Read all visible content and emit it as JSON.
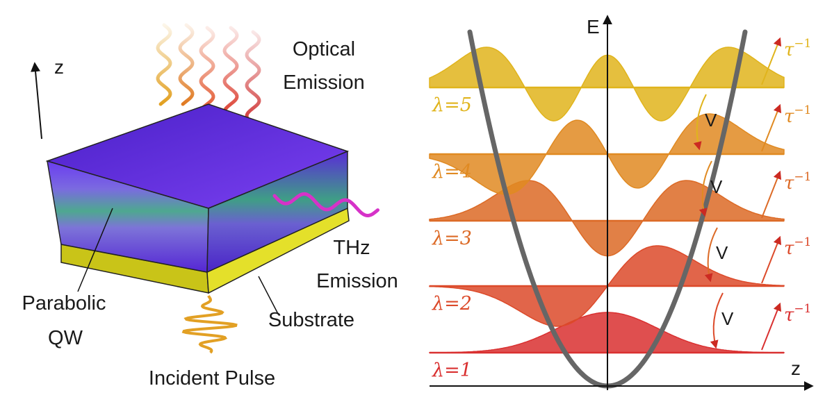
{
  "left_panel": {
    "z_axis_label": "z",
    "optical_emission": [
      "Optical",
      "Emission"
    ],
    "thz_emission": [
      "THz",
      "Emission"
    ],
    "parabolic_qw": [
      "Parabolic",
      "QW"
    ],
    "substrate": "Substrate",
    "incident_pulse": "Incident Pulse"
  },
  "right_panel": {
    "energy_axis_label": "E",
    "position_axis_label": "z",
    "relaxation_label": "τ",
    "relaxation_exponent": "−1",
    "coupling_label": "V",
    "levels": [
      {
        "label": "λ=1",
        "color": "#d93030"
      },
      {
        "label": "λ=2",
        "color": "#dc4a2a"
      },
      {
        "label": "λ=3",
        "color": "#dc6a26"
      },
      {
        "label": "λ=4",
        "color": "#e08a22"
      },
      {
        "label": "λ=5",
        "color": "#e0b41c"
      }
    ]
  },
  "colors": {
    "qw_purple": "#5a2bd8",
    "qw_green": "#3fa07a",
    "substrate_yellow": "#d6d21a",
    "potential_gray": "#666666",
    "thz_magenta": "#d632c8",
    "pulse_orange": "#e2a024"
  }
}
